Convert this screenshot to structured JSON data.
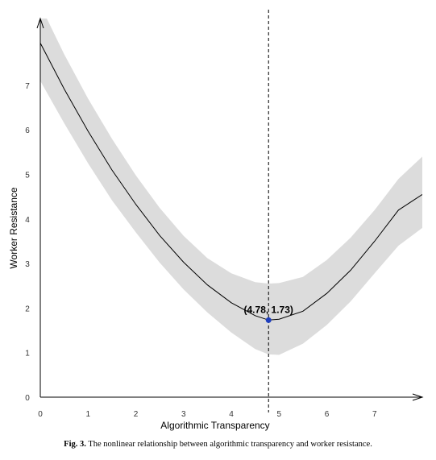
{
  "caption": {
    "label": "Fig. 3.",
    "text": "The nonlinear relationship between algorithmic transparency and worker resistance."
  },
  "chart_data": {
    "type": "line",
    "title": "",
    "xlabel": "Algorithmic Transparency",
    "ylabel": "Worker Resistance",
    "xlim": [
      0,
      8
    ],
    "ylim": [
      0,
      8.5
    ],
    "x_ticks": [
      0,
      1,
      2,
      3,
      4,
      5,
      6,
      7
    ],
    "y_ticks": [
      0,
      1,
      2,
      3,
      4,
      5,
      6,
      7
    ],
    "grid": false,
    "legend": "none",
    "series": [
      {
        "x": [
          0,
          0.5,
          1,
          1.5,
          2,
          2.5,
          3,
          3.5,
          4,
          4.5,
          4.78,
          5,
          5.5,
          6,
          6.5,
          7,
          7.5,
          8
        ],
        "y": [
          7.95,
          6.92,
          5.97,
          5.1,
          4.33,
          3.63,
          3.03,
          2.52,
          2.12,
          1.83,
          1.73,
          1.75,
          1.93,
          2.33,
          2.85,
          3.5,
          4.2,
          4.55
        ],
        "lower": [
          7.1,
          6.15,
          5.25,
          4.42,
          3.7,
          3.02,
          2.42,
          1.9,
          1.45,
          1.08,
          0.96,
          0.95,
          1.2,
          1.62,
          2.15,
          2.78,
          3.4,
          3.8
        ],
        "upper": [
          8.8,
          7.7,
          6.7,
          5.8,
          4.98,
          4.25,
          3.62,
          3.12,
          2.78,
          2.58,
          2.55,
          2.56,
          2.7,
          3.08,
          3.58,
          4.2,
          4.9,
          5.4
        ]
      }
    ],
    "vertical_line_x": 4.78,
    "point": {
      "x": 4.78,
      "y": 1.73,
      "label": "(4.78, 1.73)"
    },
    "colors": {
      "line": "#000000",
      "band": "#dcdcdc",
      "point": "#1f3fbf",
      "axis": "#000000"
    }
  }
}
